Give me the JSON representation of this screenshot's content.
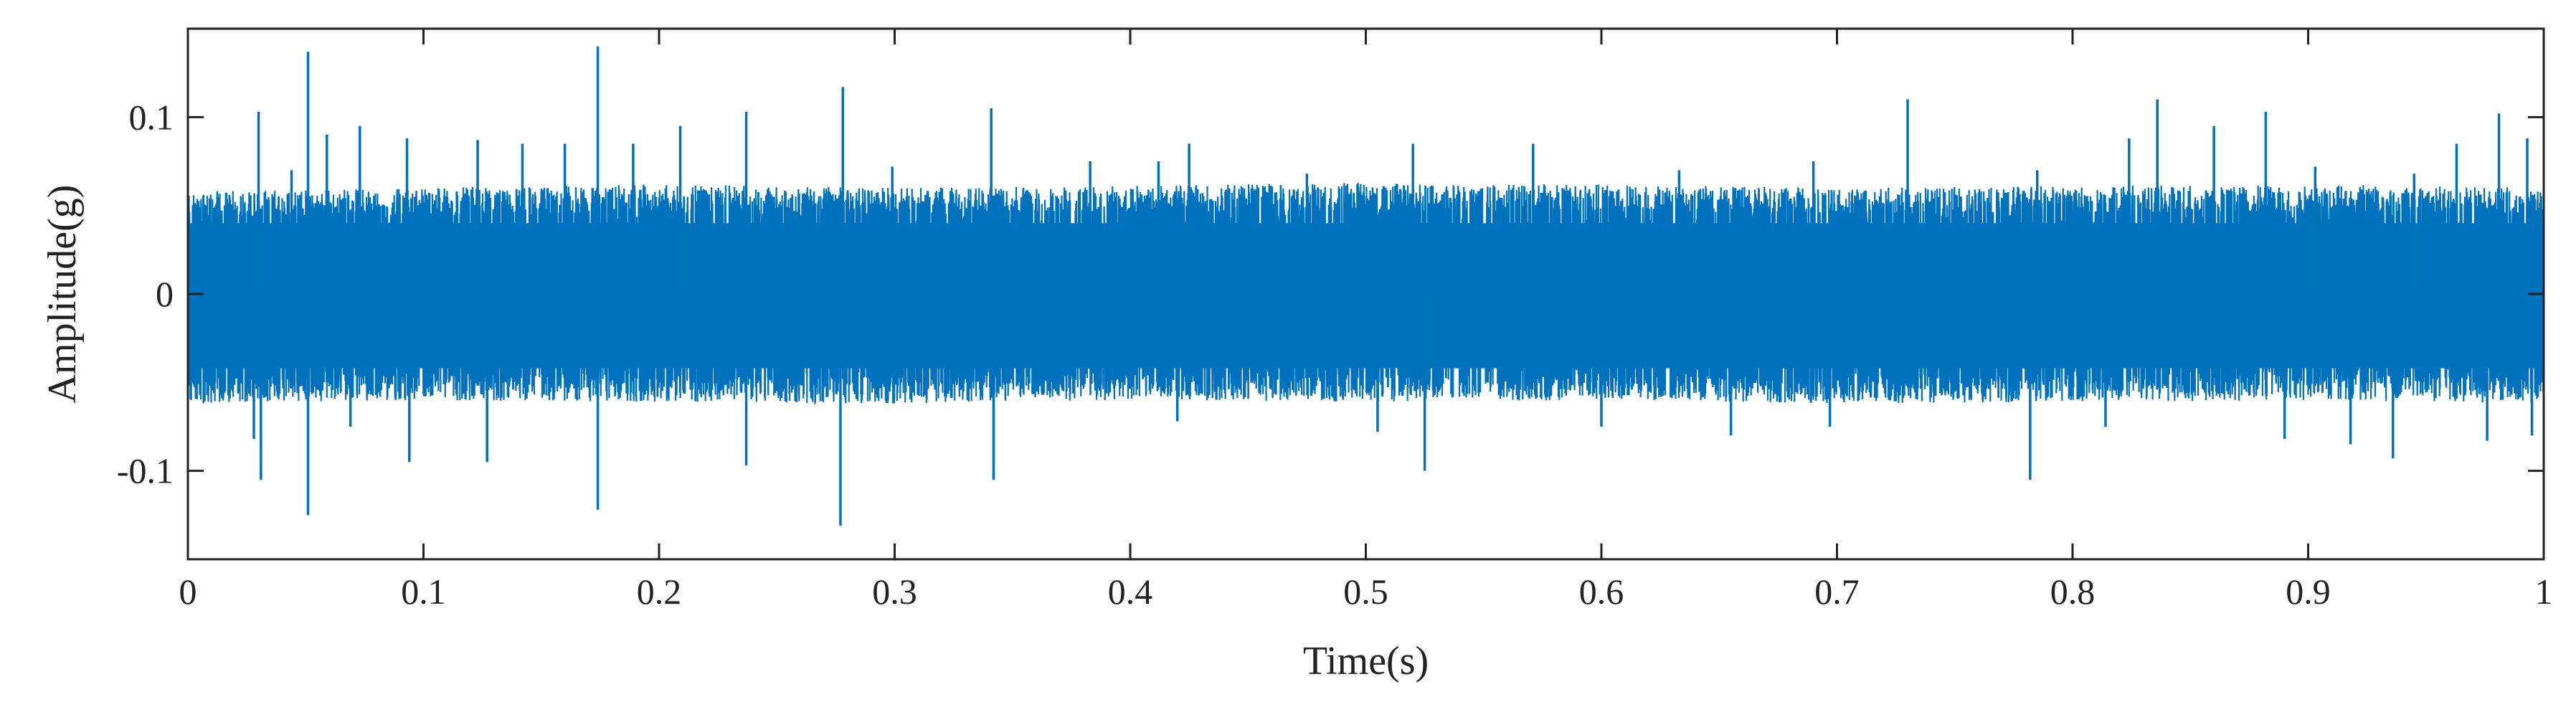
{
  "chart_data": {
    "type": "line",
    "title": "",
    "xlabel": "Time(s)",
    "ylabel": "Amplitude(g)",
    "xlim": [
      0,
      1
    ],
    "ylim": [
      -0.15,
      0.15
    ],
    "x_ticks": [
      0,
      0.1,
      0.2,
      0.3,
      0.4,
      0.5,
      0.6,
      0.7,
      0.8,
      0.9,
      1
    ],
    "x_tick_labels": [
      "0",
      "0.1",
      "0.2",
      "0.3",
      "0.4",
      "0.5",
      "0.6",
      "0.7",
      "0.8",
      "0.9",
      "1"
    ],
    "y_ticks": [
      -0.1,
      0,
      0.1
    ],
    "y_tick_labels": [
      "-0.1",
      "0",
      "0.1"
    ],
    "grid": false,
    "legend": "none",
    "series": [
      {
        "color": "#0072BD",
        "envelope_top": [
          0.058,
          0.06,
          0.062,
          0.06,
          0.061,
          0.063,
          0.062,
          0.06,
          0.061,
          0.062,
          0.06
        ],
        "envelope_bottom": [
          -0.062,
          -0.06,
          -0.061,
          -0.062,
          -0.06,
          -0.061,
          -0.06,
          -0.062,
          -0.061,
          -0.06,
          -0.062
        ],
        "peaks": [
          {
            "x": 0.03,
            "y": 0.103
          },
          {
            "x": 0.044,
            "y": 0.07
          },
          {
            "x": 0.051,
            "y": 0.137
          },
          {
            "x": 0.059,
            "y": 0.09
          },
          {
            "x": 0.073,
            "y": 0.095
          },
          {
            "x": 0.093,
            "y": 0.088
          },
          {
            "x": 0.123,
            "y": 0.087
          },
          {
            "x": 0.142,
            "y": 0.085
          },
          {
            "x": 0.16,
            "y": 0.085
          },
          {
            "x": 0.174,
            "y": 0.14
          },
          {
            "x": 0.189,
            "y": 0.085
          },
          {
            "x": 0.209,
            "y": 0.095
          },
          {
            "x": 0.237,
            "y": 0.103
          },
          {
            "x": 0.278,
            "y": 0.117
          },
          {
            "x": 0.299,
            "y": 0.072
          },
          {
            "x": 0.341,
            "y": 0.105
          },
          {
            "x": 0.383,
            "y": 0.075
          },
          {
            "x": 0.412,
            "y": 0.075
          },
          {
            "x": 0.425,
            "y": 0.085
          },
          {
            "x": 0.475,
            "y": 0.068
          },
          {
            "x": 0.52,
            "y": 0.085
          },
          {
            "x": 0.571,
            "y": 0.085
          },
          {
            "x": 0.633,
            "y": 0.07
          },
          {
            "x": 0.69,
            "y": 0.075
          },
          {
            "x": 0.73,
            "y": 0.11
          },
          {
            "x": 0.785,
            "y": 0.07
          },
          {
            "x": 0.824,
            "y": 0.088
          },
          {
            "x": 0.836,
            "y": 0.11
          },
          {
            "x": 0.86,
            "y": 0.095
          },
          {
            "x": 0.882,
            "y": 0.103
          },
          {
            "x": 0.903,
            "y": 0.072
          },
          {
            "x": 0.945,
            "y": 0.068
          },
          {
            "x": 0.963,
            "y": 0.085
          },
          {
            "x": 0.981,
            "y": 0.102
          },
          {
            "x": 0.993,
            "y": 0.088
          }
        ],
        "troughs": [
          {
            "x": 0.028,
            "y": -0.082
          },
          {
            "x": 0.031,
            "y": -0.105
          },
          {
            "x": 0.051,
            "y": -0.125
          },
          {
            "x": 0.069,
            "y": -0.075
          },
          {
            "x": 0.094,
            "y": -0.095
          },
          {
            "x": 0.127,
            "y": -0.095
          },
          {
            "x": 0.174,
            "y": -0.122
          },
          {
            "x": 0.237,
            "y": -0.097
          },
          {
            "x": 0.277,
            "y": -0.131
          },
          {
            "x": 0.342,
            "y": -0.105
          },
          {
            "x": 0.42,
            "y": -0.072
          },
          {
            "x": 0.505,
            "y": -0.078
          },
          {
            "x": 0.525,
            "y": -0.1
          },
          {
            "x": 0.6,
            "y": -0.075
          },
          {
            "x": 0.655,
            "y": -0.08
          },
          {
            "x": 0.697,
            "y": -0.075
          },
          {
            "x": 0.782,
            "y": -0.105
          },
          {
            "x": 0.814,
            "y": -0.075
          },
          {
            "x": 0.89,
            "y": -0.082
          },
          {
            "x": 0.918,
            "y": -0.085
          },
          {
            "x": 0.936,
            "y": -0.093
          },
          {
            "x": 0.976,
            "y": -0.083
          },
          {
            "x": 0.995,
            "y": -0.08
          }
        ]
      }
    ]
  }
}
